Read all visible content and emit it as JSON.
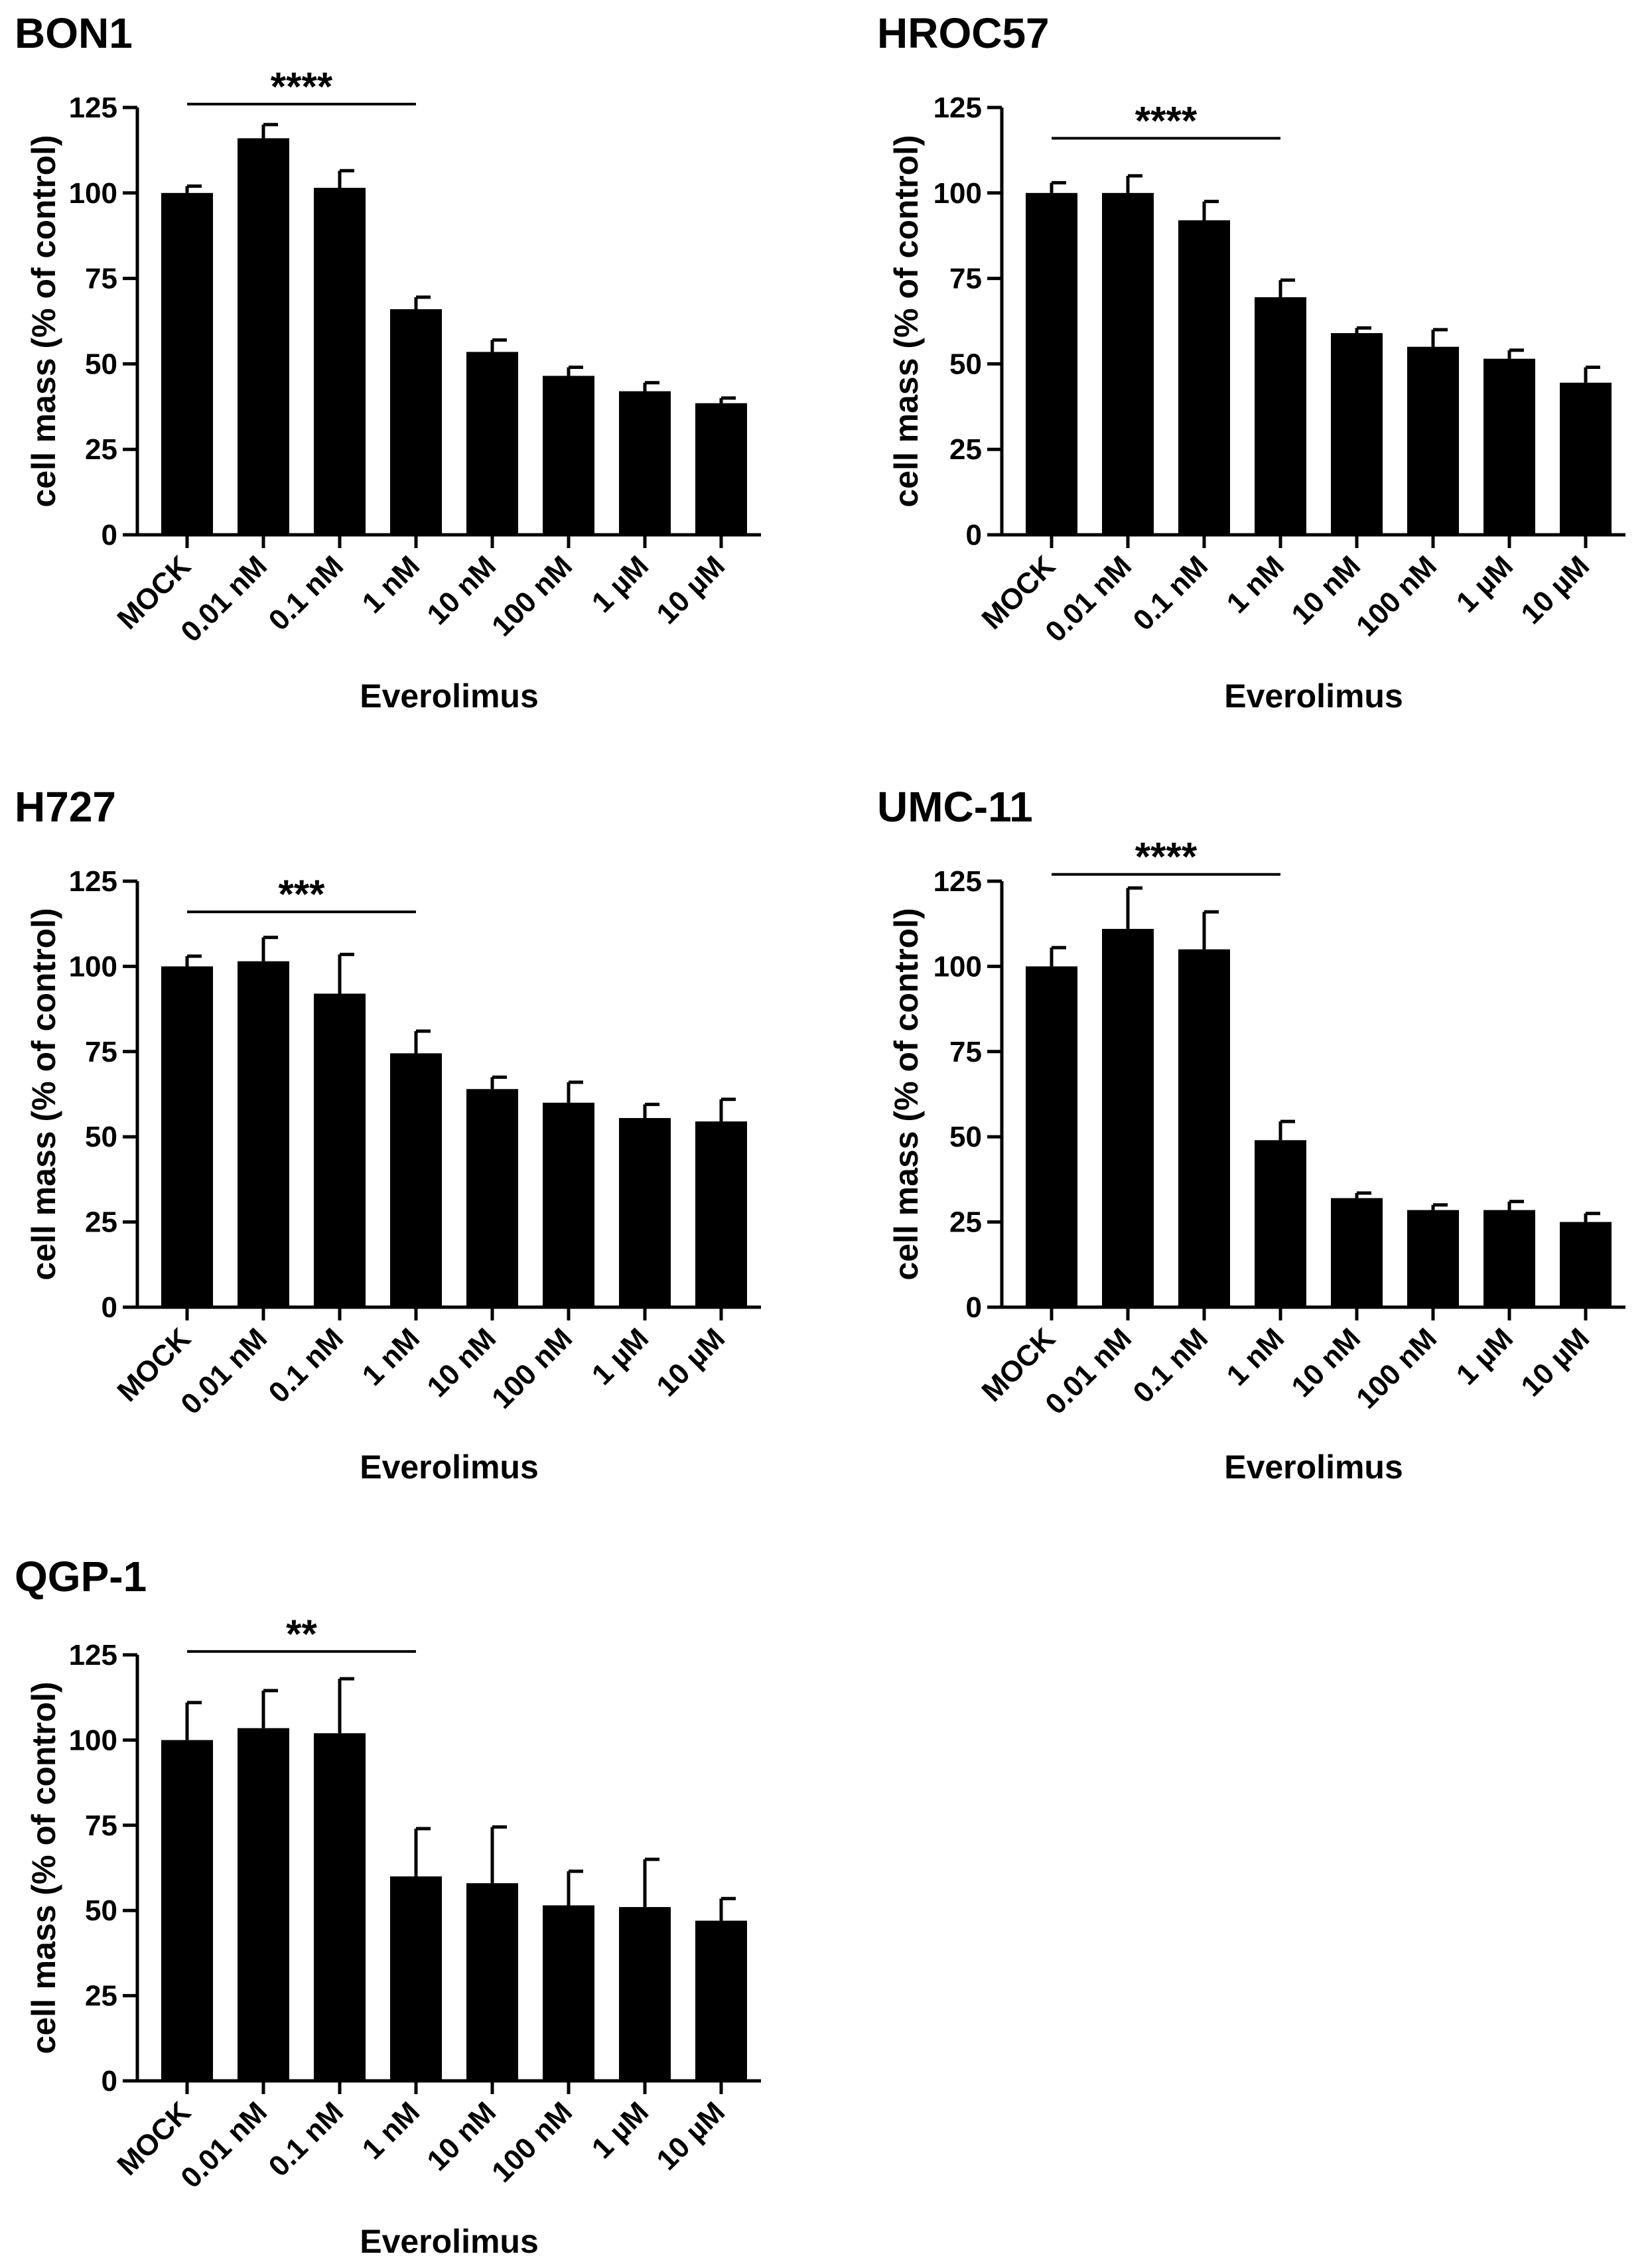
{
  "figure": {
    "bar_color": "#000000",
    "background": "#ffffff"
  },
  "chart_data": [
    {
      "type": "bar",
      "title": "BON1",
      "xlabel": "Everolimus",
      "ylabel": "cell mass (% of control)",
      "categories": [
        "MOCK",
        "0.01 nM",
        "0.1 nM",
        "1 nM",
        "10 nM",
        "100 nM",
        "1 µM",
        "10 µM"
      ],
      "values": [
        100,
        116,
        101.5,
        66,
        53.5,
        46.5,
        42,
        38.5
      ],
      "errors": [
        2,
        4,
        5,
        3.5,
        3.5,
        2.5,
        2.5,
        1.5
      ],
      "yticks": [
        0,
        25,
        50,
        75,
        100,
        125
      ],
      "ylim": [
        0,
        125
      ],
      "significance": {
        "label": "****",
        "from": "MOCK",
        "to": "1 nM",
        "y": 126
      }
    },
    {
      "type": "bar",
      "title": "HROC57",
      "xlabel": "Everolimus",
      "ylabel": "cell mass (% of control)",
      "categories": [
        "MOCK",
        "0.01 nM",
        "0.1 nM",
        "1 nM",
        "10 nM",
        "100 nM",
        "1 µM",
        "10 µM"
      ],
      "values": [
        100,
        100,
        92,
        69.5,
        59,
        55,
        51.5,
        44.5
      ],
      "errors": [
        3,
        5,
        5.5,
        5,
        1.5,
        5,
        2.5,
        4.5
      ],
      "yticks": [
        0,
        25,
        50,
        75,
        100,
        125
      ],
      "ylim": [
        0,
        125
      ],
      "significance": {
        "label": "****",
        "from": "MOCK",
        "to": "1 nM",
        "y": 116
      }
    },
    {
      "type": "bar",
      "title": "H727",
      "xlabel": "Everolimus",
      "ylabel": "cell mass (% of control)",
      "categories": [
        "MOCK",
        "0.01 nM",
        "0.1 nM",
        "1 nM",
        "10 nM",
        "100 nM",
        "1 µM",
        "10 µM"
      ],
      "values": [
        100,
        101.5,
        92,
        74.5,
        64,
        60,
        55.5,
        54.5
      ],
      "errors": [
        3,
        7,
        11.5,
        6.5,
        3.5,
        6,
        4,
        6.5
      ],
      "yticks": [
        0,
        25,
        50,
        75,
        100,
        125
      ],
      "ylim": [
        0,
        125
      ],
      "significance": {
        "label": "***",
        "from": "MOCK",
        "to": "1 nM",
        "y": 116
      }
    },
    {
      "type": "bar",
      "title": "UMC-11",
      "xlabel": "Everolimus",
      "ylabel": "cell mass (% of control)",
      "categories": [
        "MOCK",
        "0.01 nM",
        "0.1 nM",
        "1 nM",
        "10 nM",
        "100 nM",
        "1 µM",
        "10 µM"
      ],
      "values": [
        100,
        111,
        105,
        49,
        32,
        28.5,
        28.5,
        25
      ],
      "errors": [
        5.5,
        12,
        11,
        5.5,
        1.5,
        1.5,
        2.5,
        2.5
      ],
      "yticks": [
        0,
        25,
        50,
        75,
        100,
        125
      ],
      "ylim": [
        0,
        125
      ],
      "significance": {
        "label": "****",
        "from": "MOCK",
        "to": "1 nM",
        "y": 127
      }
    },
    {
      "type": "bar",
      "title": "QGP-1",
      "xlabel": "Everolimus",
      "ylabel": "cell mass (% of control)",
      "categories": [
        "MOCK",
        "0.01 nM",
        "0.1 nM",
        "1 nM",
        "10 nM",
        "100 nM",
        "1 µM",
        "10 µM"
      ],
      "values": [
        100,
        103.5,
        102,
        60,
        58,
        51.5,
        51,
        47
      ],
      "errors": [
        11,
        11,
        16,
        14,
        16.5,
        10,
        14,
        6.5
      ],
      "yticks": [
        0,
        25,
        50,
        75,
        100,
        125
      ],
      "ylim": [
        0,
        125
      ],
      "significance": {
        "label": "**",
        "from": "MOCK",
        "to": "1 nM",
        "y": 126
      }
    }
  ]
}
